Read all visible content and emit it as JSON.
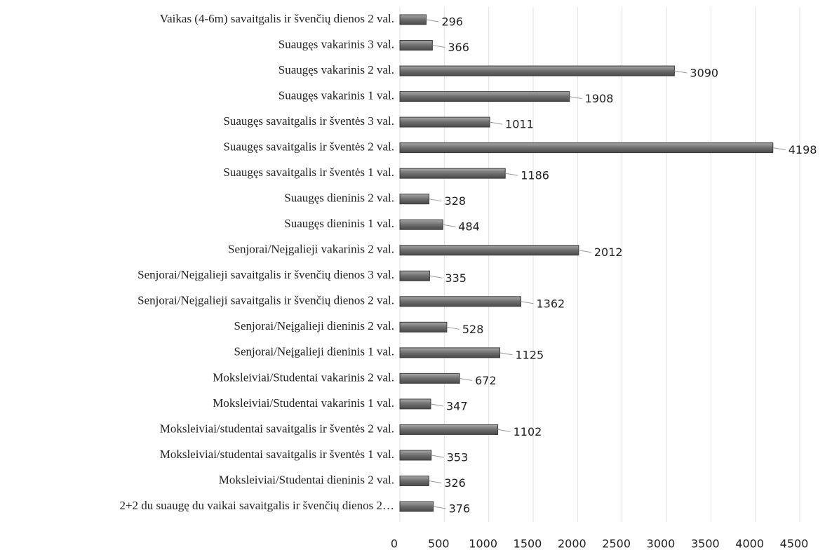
{
  "chart_data": {
    "type": "bar",
    "orientation": "horizontal",
    "categories": [
      "Vaikas (4-6m) savaitgalis ir švenčių dienos 2 val.",
      "Suaugęs vakarinis 3 val.",
      "Suaugęs vakarinis 2 val.",
      "Suaugęs vakarinis 1 val.",
      "Suaugęs savaitgalis ir šventės 3 val.",
      "Suaugęs savaitgalis ir šventės 2 val.",
      "Suaugęs savaitgalis ir šventės 1 val.",
      "Suaugęs dieninis 2 val.",
      "Suaugęs dieninis 1 val.",
      "Senjorai/Neįgalieji vakarinis 2 val.",
      "Senjorai/Neįgalieji savaitgalis ir švenčių dienos 3 val.",
      "Senjorai/Neįgalieji savaitgalis ir švenčių dienos 2 val.",
      "Senjorai/Neįgalieji dieninis 2 val.",
      "Senjorai/Neįgalieji dieninis 1 val.",
      "Moksleiviai/Studentai vakarinis 2 val.",
      "Moksleiviai/Studentai vakarinis 1 val.",
      "Moksleiviai/studentai savaitgalis ir šventės 2 val.",
      "Moksleiviai/studentai savaitgalis ir šventės 1 val.",
      "Moksleiviai/Studentai dieninis 2 val.",
      "2+2 du suaugę du vaikai savaitgalis ir švenčių dienos 2…"
    ],
    "values": [
      296,
      366,
      3090,
      1908,
      1011,
      4198,
      1186,
      328,
      484,
      2012,
      335,
      1362,
      528,
      1125,
      672,
      347,
      1102,
      353,
      326,
      376
    ],
    "color": "#7a7a7a",
    "xlim": [
      0,
      4500
    ],
    "xticks": [
      0,
      500,
      1000,
      1500,
      2000,
      2500,
      3000,
      3500,
      4000,
      4500
    ],
    "grid": true
  }
}
